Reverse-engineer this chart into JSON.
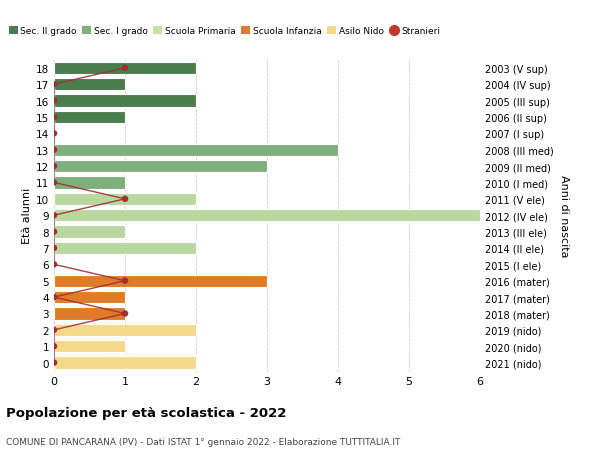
{
  "ages": [
    18,
    17,
    16,
    15,
    14,
    13,
    12,
    11,
    10,
    9,
    8,
    7,
    6,
    5,
    4,
    3,
    2,
    1,
    0
  ],
  "right_labels": [
    "2003 (V sup)",
    "2004 (IV sup)",
    "2005 (III sup)",
    "2006 (II sup)",
    "2007 (I sup)",
    "2008 (III med)",
    "2009 (II med)",
    "2010 (I med)",
    "2011 (V ele)",
    "2012 (IV ele)",
    "2013 (III ele)",
    "2014 (II ele)",
    "2015 (I ele)",
    "2016 (mater)",
    "2017 (mater)",
    "2018 (mater)",
    "2019 (nido)",
    "2020 (nido)",
    "2021 (nido)"
  ],
  "bar_values": [
    2,
    1,
    2,
    1,
    0,
    4,
    3,
    1,
    2,
    6,
    1,
    2,
    0,
    3,
    1,
    1,
    2,
    1,
    2
  ],
  "bar_colors": [
    "#4a7c4e",
    "#4a7c4e",
    "#4a7c4e",
    "#4a7c4e",
    "#4a7c4e",
    "#7db07d",
    "#7db07d",
    "#7db07d",
    "#b8d8a0",
    "#b8d8a0",
    "#b8d8a0",
    "#b8d8a0",
    "#b8d8a0",
    "#e07b2a",
    "#e07b2a",
    "#e07b2a",
    "#f5d98b",
    "#f5d98b",
    "#f5d98b"
  ],
  "stranieri_values": [
    1,
    0,
    0,
    0,
    0,
    0,
    0,
    0,
    1,
    0,
    0,
    0,
    0,
    1,
    0,
    1,
    0,
    0,
    0
  ],
  "legend_labels": [
    "Sec. II grado",
    "Sec. I grado",
    "Scuola Primaria",
    "Scuola Infanzia",
    "Asilo Nido",
    "Stranieri"
  ],
  "legend_colors": [
    "#4a7c4e",
    "#7db07d",
    "#c8dfa8",
    "#e07b2a",
    "#f5d98b",
    "#c0392b"
  ],
  "title": "Popolazione per età scolastica - 2022",
  "subtitle": "COMUNE DI PANCARANA (PV) - Dati ISTAT 1° gennaio 2022 - Elaborazione TUTTITALIA.IT",
  "ylabel_left": "Età alunni",
  "ylabel_right": "Anni di nascita",
  "xlim": [
    0,
    6
  ],
  "bar_height": 0.75,
  "bg_color": "#ffffff",
  "grid_color": "#cccccc",
  "stranieri_color": "#a03030"
}
